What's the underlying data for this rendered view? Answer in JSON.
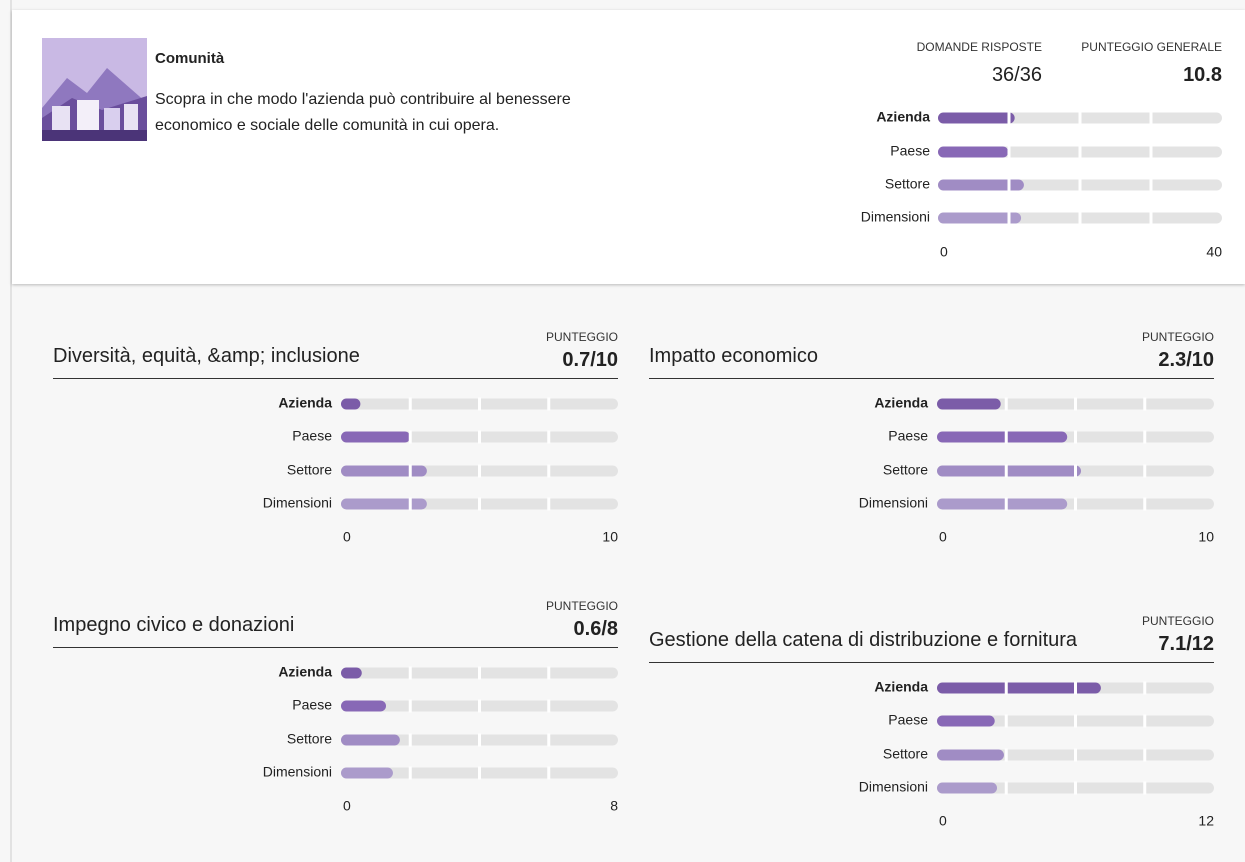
{
  "header": {
    "title": "Comunità",
    "description": "Scopra in che modo l'azienda può contribuire al benessere economico e sociale delle comunità in cui opera.",
    "answered_label": "DOMANDE RISPOSTE",
    "answered": "36/36",
    "score_label": "PUNTEGGIO GENERALE",
    "score": "10.8"
  },
  "chart_data": [
    {
      "type": "bar",
      "categories": [
        "Azienda",
        "Paese",
        "Settore",
        "Dimensioni"
      ],
      "values": [
        10.8,
        9.9,
        12.1,
        11.7
      ],
      "colors": [
        "#7b5ca8",
        "#8868b6",
        "#a08cc4",
        "#ab9bcb"
      ],
      "xlim": [
        0,
        40
      ],
      "xticks": [
        0,
        40
      ]
    },
    {
      "type": "bar",
      "title": "Diversità, equità, &amp; inclusione",
      "score_label": "PUNTEGGIO",
      "score": "0.7/10",
      "categories": [
        "Azienda",
        "Paese",
        "Settore",
        "Dimensioni"
      ],
      "values": [
        0.7,
        2.5,
        3.1,
        3.1
      ],
      "colors": [
        "#7b5ca8",
        "#8868b6",
        "#a08cc4",
        "#ab9bcb"
      ],
      "xlim": [
        0,
        10
      ],
      "xticks": [
        0,
        10
      ]
    },
    {
      "type": "bar",
      "title": "Impatto economico",
      "score_label": "PUNTEGGIO",
      "score": "2.3/10",
      "categories": [
        "Azienda",
        "Paese",
        "Settore",
        "Dimensioni"
      ],
      "values": [
        2.3,
        4.7,
        5.2,
        4.7
      ],
      "colors": [
        "#7b5ca8",
        "#8868b6",
        "#a08cc4",
        "#ab9bcb"
      ],
      "xlim": [
        0,
        10
      ],
      "xticks": [
        0,
        10
      ]
    },
    {
      "type": "bar",
      "title": "Impegno civico e donazioni",
      "score_label": "PUNTEGGIO",
      "score": "0.6/8",
      "categories": [
        "Azienda",
        "Paese",
        "Settore",
        "Dimensioni"
      ],
      "values": [
        0.6,
        1.3,
        1.7,
        1.5
      ],
      "colors": [
        "#7b5ca8",
        "#8868b6",
        "#a08cc4",
        "#ab9bcb"
      ],
      "xlim": [
        0,
        8
      ],
      "xticks": [
        0,
        8
      ]
    },
    {
      "type": "bar",
      "title": "Gestione della catena di distribuzione e fornitura",
      "score_label": "PUNTEGGIO",
      "score": "7.1/12",
      "categories": [
        "Azienda",
        "Paese",
        "Settore",
        "Dimensioni"
      ],
      "values": [
        7.1,
        2.5,
        2.9,
        2.6
      ],
      "colors": [
        "#7b5ca8",
        "#8868b6",
        "#a08cc4",
        "#ab9bcb"
      ],
      "xlim": [
        0,
        12
      ],
      "xticks": [
        0,
        12
      ]
    }
  ]
}
